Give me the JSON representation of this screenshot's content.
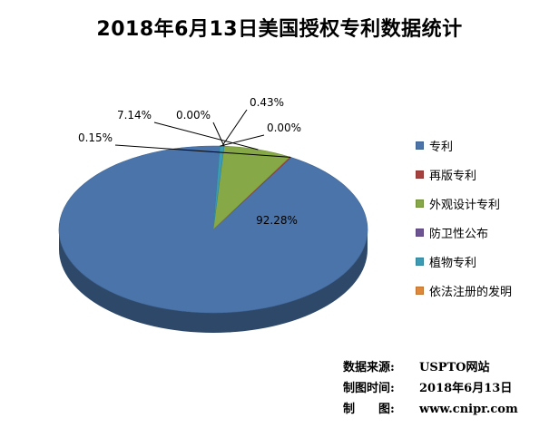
{
  "chart_data": {
    "type": "pie",
    "title": "2018年6月13日美国授权专利数据统计",
    "slices": [
      {
        "name": "专利",
        "value": 92.28,
        "label": "92.28%",
        "color": "#4a74aa"
      },
      {
        "name": "再版专利",
        "value": 0.15,
        "label": "0.15%",
        "color": "#a8413e"
      },
      {
        "name": "外观设计专利",
        "value": 7.14,
        "label": "7.14%",
        "color": "#86a847"
      },
      {
        "name": "防卫性公布",
        "value": 0.0,
        "label": "0.00%",
        "color": "#6f5494"
      },
      {
        "name": "植物专利",
        "value": 0.43,
        "label": "0.43%",
        "color": "#3d9cb5"
      },
      {
        "name": "依法注册的发明",
        "value": 0.0,
        "label": "0.00%",
        "color": "#e0883a"
      }
    ],
    "legend_position": "right"
  },
  "source": {
    "data_source_label": "数据来源:",
    "data_source_value": "USPTO网站",
    "date_label": "制图时间:",
    "date_value": "2018年6月13日",
    "author_label": "制　　图:",
    "author_value": "www.cnipr.com"
  }
}
